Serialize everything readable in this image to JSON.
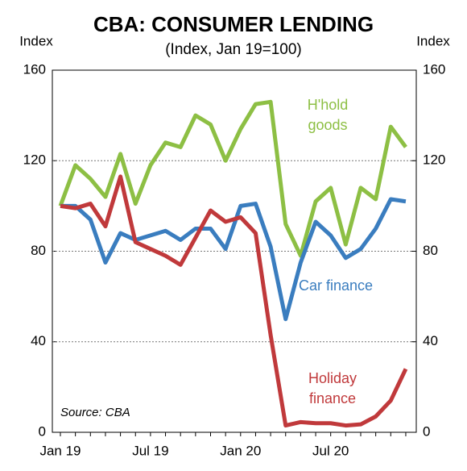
{
  "chart_data": {
    "type": "line",
    "title": "CBA: CONSUMER LENDING",
    "subtitle": "(Index, Jan 19=100)",
    "y_label": "Index",
    "y2_label": "Index",
    "annotation": "Source: CBA",
    "categories": [
      "Jan 19",
      null,
      null,
      null,
      null,
      null,
      "Jul 19",
      null,
      null,
      null,
      null,
      null,
      "Jan 20",
      null,
      null,
      null,
      null,
      null,
      "Jul 20",
      null,
      null,
      null,
      null,
      null
    ],
    "series": [
      {
        "name": "H'hold goods",
        "color": "#8dbf44",
        "values": [
          100,
          118,
          112,
          104,
          123,
          101,
          118,
          128,
          126,
          140,
          136,
          120,
          134,
          145,
          146,
          92,
          78,
          102,
          108,
          83,
          108,
          103,
          135,
          126
        ]
      },
      {
        "name": "Car finance",
        "color": "#3a7dbf",
        "values": [
          100,
          100,
          94,
          75,
          88,
          85,
          87,
          89,
          85,
          90,
          90,
          81,
          100,
          101,
          82,
          50,
          75,
          93,
          87,
          77,
          81,
          90,
          103,
          102
        ]
      },
      {
        "name": "Holiday finance",
        "color": "#c0393b",
        "values": [
          100,
          99,
          101,
          91,
          113,
          84,
          81,
          78,
          74,
          86,
          98,
          93,
          95,
          88,
          43,
          3,
          4.5,
          4,
          4,
          3,
          3.5,
          7,
          14,
          28
        ]
      }
    ],
    "ylim": [
      0,
      160
    ],
    "yticks": [
      0,
      40,
      80,
      120,
      160
    ],
    "y2lim": [
      0,
      160
    ],
    "y2ticks": [
      0,
      40,
      80,
      120,
      160
    ],
    "grid": true
  }
}
